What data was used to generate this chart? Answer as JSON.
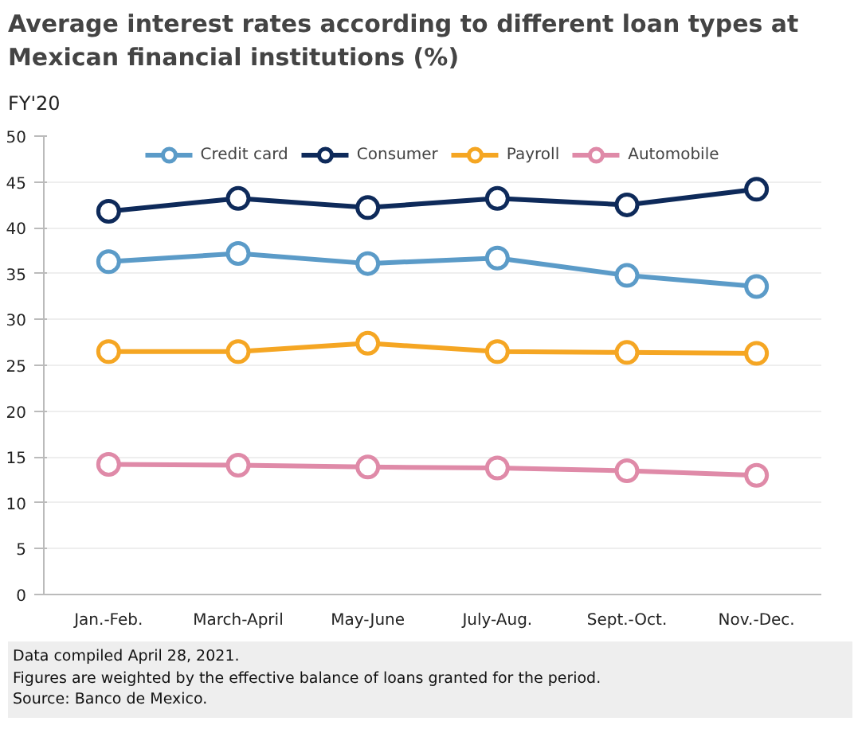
{
  "chart_data": {
    "type": "line",
    "title": "Average interest rates according to different loan types at Mexican financial institutions (%)",
    "subtitle": "FY'20",
    "categories": [
      "Jan.-Feb.",
      "March-April",
      "May-June",
      "July-Aug.",
      "Sept.-Oct.",
      "Nov.-Dec."
    ],
    "series": [
      {
        "name": "Credit card",
        "color": "#5b9bc8",
        "values": [
          36.3,
          37.2,
          36.1,
          36.7,
          34.8,
          33.6
        ]
      },
      {
        "name": "Consumer",
        "color": "#0e2a5a",
        "values": [
          41.8,
          43.2,
          42.2,
          43.2,
          42.5,
          44.2
        ]
      },
      {
        "name": "Payroll",
        "color": "#f5a623",
        "values": [
          26.5,
          26.5,
          27.4,
          26.5,
          26.4,
          26.3
        ]
      },
      {
        "name": "Automobile",
        "color": "#df8aa8",
        "values": [
          14.2,
          14.1,
          13.9,
          13.8,
          13.5,
          13.0
        ]
      }
    ],
    "ylim": [
      0,
      50
    ],
    "yticks": [
      0,
      5,
      10,
      15,
      20,
      25,
      30,
      35,
      40,
      45,
      50
    ],
    "grid": "y",
    "legend": "top",
    "marker": "circle",
    "line_style": "solid",
    "annotations": [
      "Data compiled April 28, 2021.",
      "Figures are weighted by the effective balance of loans granted for the period.",
      "Source: Banco de Mexico."
    ]
  }
}
